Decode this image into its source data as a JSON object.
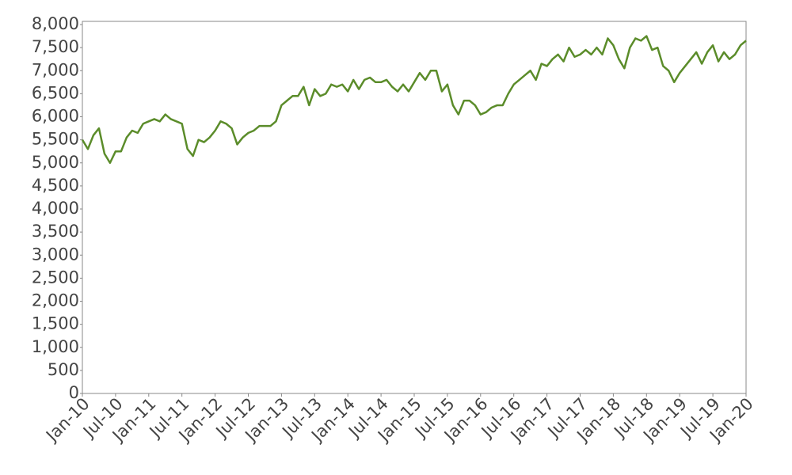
{
  "chart_data": {
    "type": "line",
    "x": [
      "2010-01",
      "2010-02",
      "2010-03",
      "2010-04",
      "2010-05",
      "2010-06",
      "2010-07",
      "2010-08",
      "2010-09",
      "2010-10",
      "2010-11",
      "2010-12",
      "2011-01",
      "2011-02",
      "2011-03",
      "2011-04",
      "2011-05",
      "2011-06",
      "2011-07",
      "2011-08",
      "2011-09",
      "2011-10",
      "2011-11",
      "2011-12",
      "2012-01",
      "2012-02",
      "2012-03",
      "2012-04",
      "2012-05",
      "2012-06",
      "2012-07",
      "2012-08",
      "2012-09",
      "2012-10",
      "2012-11",
      "2012-12",
      "2013-01",
      "2013-02",
      "2013-03",
      "2013-04",
      "2013-05",
      "2013-06",
      "2013-07",
      "2013-08",
      "2013-09",
      "2013-10",
      "2013-11",
      "2013-12",
      "2014-01",
      "2014-02",
      "2014-03",
      "2014-04",
      "2014-05",
      "2014-06",
      "2014-07",
      "2014-08",
      "2014-09",
      "2014-10",
      "2014-11",
      "2014-12",
      "2015-01",
      "2015-02",
      "2015-03",
      "2015-04",
      "2015-05",
      "2015-06",
      "2015-07",
      "2015-08",
      "2015-09",
      "2015-10",
      "2015-11",
      "2015-12",
      "2016-01",
      "2016-02",
      "2016-03",
      "2016-04",
      "2016-05",
      "2016-06",
      "2016-07",
      "2016-08",
      "2016-09",
      "2016-10",
      "2016-11",
      "2016-12",
      "2017-01",
      "2017-02",
      "2017-03",
      "2017-04",
      "2017-05",
      "2017-06",
      "2017-07",
      "2017-08",
      "2017-09",
      "2017-10",
      "2017-11",
      "2017-12",
      "2018-01",
      "2018-02",
      "2018-03",
      "2018-04",
      "2018-05",
      "2018-06",
      "2018-07",
      "2018-08",
      "2018-09",
      "2018-10",
      "2018-11",
      "2018-12",
      "2019-01",
      "2019-02",
      "2019-03",
      "2019-04",
      "2019-05",
      "2019-06",
      "2019-07",
      "2019-08",
      "2019-09",
      "2019-10",
      "2019-11",
      "2019-12",
      "2020-01"
    ],
    "series": [
      {
        "color": "#5b8c2a",
        "values": [
          5500,
          5300,
          5600,
          5750,
          5200,
          5000,
          5250,
          5250,
          5550,
          5700,
          5650,
          5850,
          5900,
          5950,
          5900,
          6050,
          5950,
          5900,
          5850,
          5300,
          5150,
          5500,
          5450,
          5550,
          5700,
          5900,
          5850,
          5750,
          5400,
          5550,
          5650,
          5700,
          5800,
          5800,
          5800,
          5900,
          6250,
          6350,
          6450,
          6450,
          6650,
          6250,
          6600,
          6450,
          6500,
          6700,
          6650,
          6700,
          6550,
          6800,
          6600,
          6800,
          6850,
          6750,
          6750,
          6800,
          6650,
          6550,
          6700,
          6550,
          6750,
          6950,
          6800,
          7000,
          7000,
          6550,
          6700,
          6250,
          6050,
          6350,
          6350,
          6250,
          6050,
          6100,
          6200,
          6250,
          6250,
          6500,
          6700,
          6800,
          6900,
          7000,
          6800,
          7150,
          7100,
          7250,
          7350,
          7200,
          7500,
          7300,
          7350,
          7450,
          7350,
          7500,
          7350,
          7700,
          7550,
          7250,
          7050,
          7500,
          7700,
          7650,
          7750,
          7450,
          7500,
          7100,
          7000,
          6750,
          6950,
          7100,
          7250,
          7400,
          7150,
          7400,
          7550,
          7200,
          7400,
          7250,
          7350,
          7550,
          7650
        ]
      }
    ],
    "xlim": [
      "2010-01",
      "2020-01"
    ],
    "xticks": [
      {
        "value": "2010-01",
        "label": "Jan-10"
      },
      {
        "value": "2010-07",
        "label": "Jul-10"
      },
      {
        "value": "2011-01",
        "label": "Jan-11"
      },
      {
        "value": "2011-07",
        "label": "Jul-11"
      },
      {
        "value": "2012-01",
        "label": "Jan-12"
      },
      {
        "value": "2012-07",
        "label": "Jul-12"
      },
      {
        "value": "2013-01",
        "label": "Jan-13"
      },
      {
        "value": "2013-07",
        "label": "Jul-13"
      },
      {
        "value": "2014-01",
        "label": "Jan-14"
      },
      {
        "value": "2014-07",
        "label": "Jul-14"
      },
      {
        "value": "2015-01",
        "label": "Jan-15"
      },
      {
        "value": "2015-07",
        "label": "Jul-15"
      },
      {
        "value": "2016-01",
        "label": "Jan-16"
      },
      {
        "value": "2016-07",
        "label": "Jul-16"
      },
      {
        "value": "2017-01",
        "label": "Jan-17"
      },
      {
        "value": "2017-07",
        "label": "Jul-17"
      },
      {
        "value": "2018-01",
        "label": "Jan-18"
      },
      {
        "value": "2018-07",
        "label": "Jul-18"
      },
      {
        "value": "2019-01",
        "label": "Jan-19"
      },
      {
        "value": "2019-07",
        "label": "Jul-19"
      },
      {
        "value": "2020-01",
        "label": "Jan-20"
      }
    ],
    "ylim": [
      0,
      8000
    ],
    "yticks": [
      0,
      500,
      {
        "value": 1000,
        "label": "1,000"
      },
      {
        "value": 1500,
        "label": "1,500"
      },
      {
        "value": 2000,
        "label": "2,000"
      },
      {
        "value": 2500,
        "label": "2,500"
      },
      {
        "value": 3000,
        "label": "3,000"
      },
      {
        "value": 3500,
        "label": "3,500"
      },
      {
        "value": 4000,
        "label": "4,000"
      },
      {
        "value": 4500,
        "label": "4,500"
      },
      {
        "value": 5000,
        "label": "5,000"
      },
      {
        "value": 5500,
        "label": "5,500"
      },
      {
        "value": 6000,
        "label": "6,000"
      },
      {
        "value": 6500,
        "label": "6,500"
      },
      {
        "value": 7000,
        "label": "7,000"
      },
      {
        "value": 7500,
        "label": "7,500"
      },
      {
        "value": 8000,
        "label": "8,000"
      }
    ],
    "grid": false
  }
}
